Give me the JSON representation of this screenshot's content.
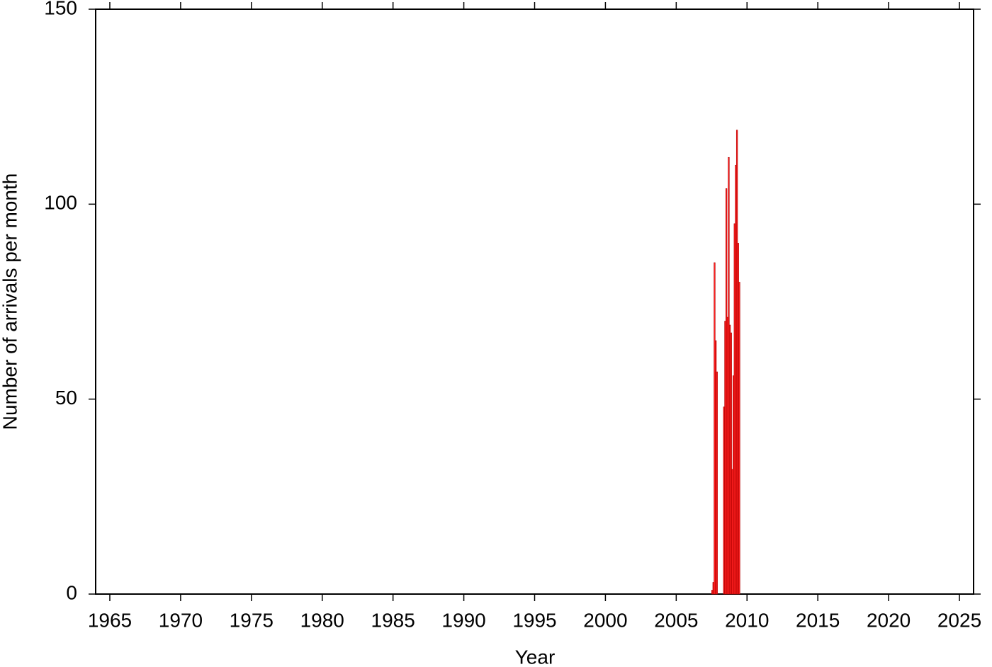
{
  "chart_data": {
    "type": "histogram",
    "x_label": "Year",
    "y_label": "Number of arrivals per month",
    "bins": [
      2007.5,
      2007.583,
      2007.667,
      2007.75,
      2007.833,
      2007.917,
      2008.0,
      2008.083,
      2008.167,
      2008.25,
      2008.333,
      2008.417,
      2008.5,
      2008.583,
      2008.667,
      2008.75,
      2008.833,
      2008.917,
      2009.0,
      2009.083,
      2009.167,
      2009.25,
      2009.333,
      2009.417,
      2009.5
    ],
    "values": [
      1,
      3,
      85,
      65,
      57,
      0,
      0,
      0,
      0,
      0,
      48,
      70,
      104,
      71,
      112,
      69,
      67,
      32,
      56,
      95,
      110,
      119,
      90,
      80
    ],
    "color": "#ff2020",
    "edge_color": "#b00000",
    "xlim": [
      1964,
      2026
    ],
    "xticks": [
      1965,
      1970,
      1975,
      1980,
      1985,
      1990,
      1995,
      2000,
      2005,
      2010,
      2015,
      2020,
      2025
    ],
    "ylim": [
      0,
      150
    ],
    "yticks": [
      0,
      50,
      100,
      150
    ],
    "grid": false
  }
}
